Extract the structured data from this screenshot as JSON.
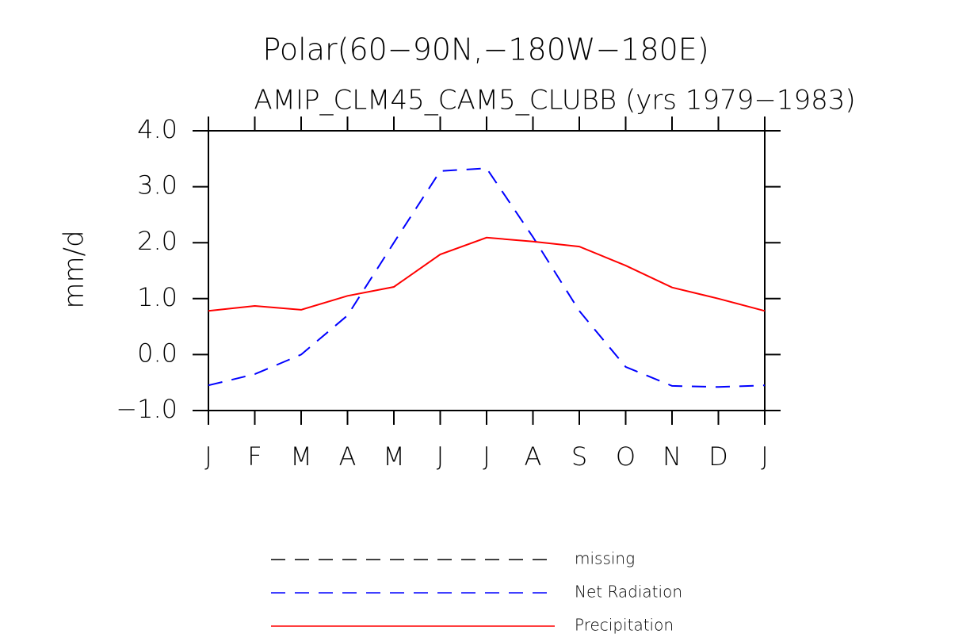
{
  "chart_data": {
    "type": "line",
    "title": "Polar(60−90N,−180W−180E)",
    "subtitle": "AMIP_CLM45_CAM5_CLUBB (yrs 1979−1983)",
    "y_label": "mm/d",
    "categories": [
      "J",
      "F",
      "M",
      "A",
      "M",
      "J",
      "J",
      "A",
      "S",
      "O",
      "N",
      "D",
      "J"
    ],
    "ylim": [
      -1,
      4
    ],
    "yticks": [
      {
        "value": 4,
        "label": "4.0"
      },
      {
        "value": 3,
        "label": "3.0"
      },
      {
        "value": 2,
        "label": "2.0"
      },
      {
        "value": 1,
        "label": "1.0"
      },
      {
        "value": 0,
        "label": "0.0"
      },
      {
        "value": -1,
        "label": "−1.0"
      }
    ],
    "series": [
      {
        "name": "missing",
        "color": "#000000",
        "style": "dashed",
        "values": [
          null,
          null,
          null,
          null,
          null,
          null,
          null,
          null,
          null,
          null,
          null,
          null,
          null
        ]
      },
      {
        "name": "Net Radiation",
        "color": "#0000ff",
        "style": "dashed",
        "values": [
          -0.55,
          -0.35,
          0.0,
          0.7,
          2.0,
          3.28,
          3.33,
          2.1,
          0.78,
          -0.22,
          -0.56,
          -0.58,
          -0.55
        ]
      },
      {
        "name": "Precipitation",
        "color": "#ff0000",
        "style": "solid",
        "values": [
          0.78,
          0.87,
          0.8,
          1.05,
          1.21,
          1.79,
          2.09,
          2.02,
          1.93,
          1.59,
          1.2,
          1.0,
          0.78
        ]
      }
    ]
  }
}
